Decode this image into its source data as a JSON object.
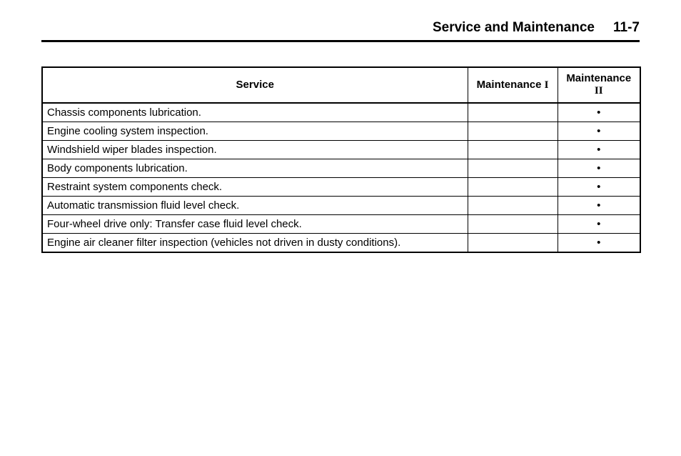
{
  "header": {
    "title": "Service and Maintenance",
    "page_number": "11-7"
  },
  "table": {
    "columns": {
      "service": "Service",
      "m1_prefix": "Maintenance",
      "m1_roman": "I",
      "m2_line1": "Maintenance",
      "m2_roman": "II"
    },
    "bullet": "•",
    "rows": [
      {
        "service": "Chassis components lubrication.",
        "m1": "",
        "m2": "•"
      },
      {
        "service": "Engine cooling system inspection.",
        "m1": "",
        "m2": "•"
      },
      {
        "service": "Windshield wiper blades inspection.",
        "m1": "",
        "m2": "•"
      },
      {
        "service": "Body components lubrication.",
        "m1": "",
        "m2": "•"
      },
      {
        "service": "Restraint system components check.",
        "m1": "",
        "m2": "•"
      },
      {
        "service": "Automatic transmission fluid level check.",
        "m1": "",
        "m2": "•"
      },
      {
        "service": "Four-wheel drive only: Transfer case fluid level check.",
        "m1": "",
        "m2": "•"
      },
      {
        "service": "Engine air cleaner filter inspection (vehicles not driven in dusty conditions).",
        "m1": "",
        "m2": "•"
      }
    ]
  }
}
